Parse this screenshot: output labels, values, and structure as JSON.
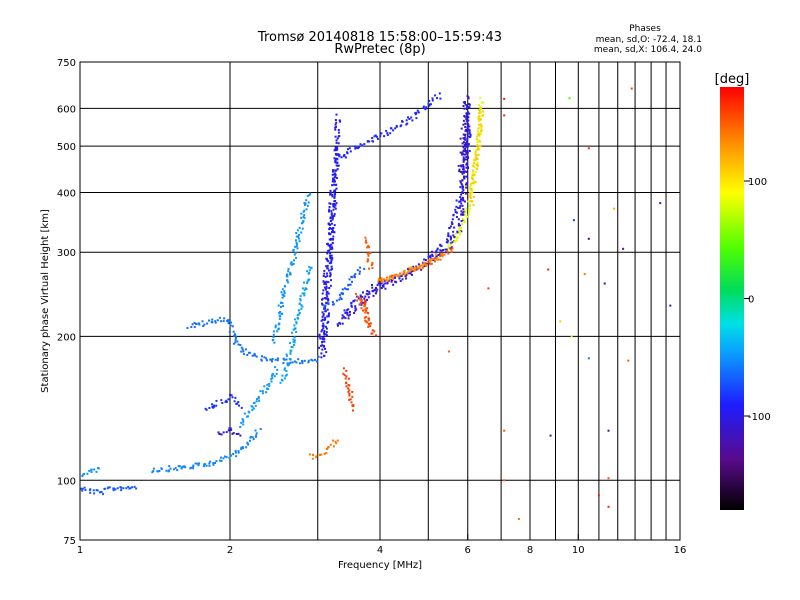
{
  "chart_data": {
    "type": "scatter",
    "title": "Tromsø 20140818 15:58:00–15:59:43",
    "subtitle": "RwPretec (8p)",
    "xlabel": "Frequency [MHz]",
    "ylabel": "Stationary phase Virtual Height [km]",
    "x_scale": "log",
    "y_scale": "log",
    "xlim": [
      1,
      16
    ],
    "ylim": [
      75,
      750
    ],
    "x_ticks": [
      1,
      2,
      4,
      6,
      8,
      10,
      16
    ],
    "x_tick_labels": [
      "1",
      "2",
      "4",
      "6",
      "8",
      "10",
      "16"
    ],
    "y_ticks": [
      75,
      100,
      200,
      300,
      400,
      500,
      600,
      750
    ],
    "y_tick_labels": [
      "75",
      "100",
      "200",
      "300",
      "400",
      "500",
      "600",
      "750"
    ],
    "grid": true,
    "phase_box": {
      "heading": "Phases",
      "line_o": "mean, sd,O: -72.4, 18.1",
      "line_x": "mean, sd,X: 106.4, 24.0"
    },
    "colorbar": {
      "label": "[deg]",
      "range": [
        -180,
        180
      ],
      "ticks": [
        100,
        0,
        -100
      ],
      "tick_labels": [
        "100",
        "0",
        "-100"
      ]
    },
    "traces": [
      {
        "pts": [
          [
            1.0,
            103
          ],
          [
            1.03,
            104
          ],
          [
            1.07,
            105
          ],
          [
            1.1,
            106
          ]
        ],
        "phase": -50
      },
      {
        "pts": [
          [
            1.0,
            96
          ],
          [
            1.05,
            95
          ],
          [
            1.1,
            94
          ],
          [
            1.15,
            96
          ],
          [
            1.3,
            97
          ]
        ],
        "phase": -70
      },
      {
        "pts": [
          [
            1.4,
            105
          ],
          [
            1.55,
            106
          ],
          [
            1.7,
            107
          ],
          [
            1.8,
            108
          ],
          [
            1.9,
            110
          ],
          [
            2.0,
            112
          ],
          [
            2.1,
            116
          ],
          [
            2.2,
            122
          ],
          [
            2.3,
            128
          ]
        ],
        "phase": -55
      },
      {
        "pts": [
          [
            1.65,
            210
          ],
          [
            1.75,
            212
          ],
          [
            1.85,
            215
          ],
          [
            1.95,
            218
          ],
          [
            2.0,
            215
          ],
          [
            2.02,
            205
          ],
          [
            2.05,
            195
          ],
          [
            2.1,
            188
          ],
          [
            2.2,
            183
          ],
          [
            2.3,
            180
          ],
          [
            2.5,
            178
          ],
          [
            2.7,
            177
          ],
          [
            2.9,
            178
          ],
          [
            3.0,
            180
          ]
        ],
        "phase": -62
      },
      {
        "pts": [
          [
            2.45,
            195
          ],
          [
            2.5,
            215
          ],
          [
            2.55,
            240
          ],
          [
            2.6,
            262
          ],
          [
            2.65,
            280
          ],
          [
            2.7,
            300
          ],
          [
            2.75,
            330
          ],
          [
            2.8,
            360
          ],
          [
            2.85,
            385
          ],
          [
            2.9,
            400
          ]
        ],
        "phase": -50
      },
      {
        "pts": [
          [
            2.55,
            160
          ],
          [
            2.6,
            175
          ],
          [
            2.65,
            190
          ],
          [
            2.7,
            205
          ],
          [
            2.75,
            222
          ],
          [
            2.8,
            240
          ],
          [
            2.85,
            260
          ],
          [
            2.9,
            275
          ],
          [
            2.95,
            280
          ]
        ],
        "phase": -45
      },
      {
        "pts": [
          [
            2.1,
            130
          ],
          [
            2.2,
            140
          ],
          [
            2.3,
            150
          ],
          [
            2.4,
            160
          ],
          [
            2.5,
            172
          ]
        ],
        "phase": -48
      },
      {
        "pts": [
          [
            1.8,
            140
          ],
          [
            1.9,
            145
          ],
          [
            2.0,
            150
          ],
          [
            2.1,
            142
          ]
        ],
        "phase": -85
      },
      {
        "pts": [
          [
            1.9,
            125
          ],
          [
            2.0,
            128
          ],
          [
            2.1,
            124
          ]
        ],
        "phase": -105
      },
      {
        "pts": [
          [
            3.05,
            190
          ],
          [
            3.1,
            250
          ],
          [
            3.15,
            300
          ],
          [
            3.2,
            380
          ],
          [
            3.25,
            450
          ],
          [
            3.28,
            520
          ],
          [
            3.3,
            580
          ]
        ],
        "phase": -98
      },
      {
        "pts": [
          [
            3.08,
            180
          ],
          [
            3.13,
            230
          ],
          [
            3.18,
            290
          ],
          [
            3.22,
            360
          ],
          [
            3.26,
            430
          ],
          [
            3.29,
            500
          ]
        ],
        "phase": -92
      },
      {
        "pts": [
          [
            3.3,
            470
          ],
          [
            3.5,
            490
          ],
          [
            3.8,
            510
          ],
          [
            4.2,
            540
          ],
          [
            4.6,
            570
          ],
          [
            5.0,
            610
          ],
          [
            5.3,
            640
          ]
        ],
        "phase": -88
      },
      {
        "pts": [
          [
            3.1,
            230
          ],
          [
            3.2,
            235
          ],
          [
            3.3,
            240
          ],
          [
            3.4,
            250
          ],
          [
            3.5,
            262
          ],
          [
            3.6,
            272
          ],
          [
            3.7,
            278
          ]
        ],
        "phase": -70
      },
      {
        "pts": [
          [
            3.3,
            210
          ],
          [
            3.4,
            222
          ],
          [
            3.5,
            232
          ],
          [
            3.7,
            245
          ],
          [
            4.0,
            258
          ],
          [
            4.5,
            272
          ],
          [
            5.0,
            290
          ],
          [
            5.5,
            320
          ],
          [
            5.8,
            390
          ],
          [
            6.0,
            500
          ],
          [
            6.05,
            620
          ]
        ],
        "phase": -92
      },
      {
        "pts": [
          [
            3.4,
            218
          ],
          [
            3.7,
            238
          ],
          [
            4.0,
            252
          ],
          [
            4.5,
            268
          ],
          [
            5.0,
            285
          ],
          [
            5.5,
            305
          ],
          [
            5.8,
            340
          ],
          [
            5.95,
            450
          ],
          [
            6.0,
            560
          ]
        ],
        "phase": -110
      },
      {
        "pts": [
          [
            5.8,
            440
          ],
          [
            5.85,
            500
          ],
          [
            5.9,
            560
          ],
          [
            5.95,
            620
          ],
          [
            6.0,
            640
          ]
        ],
        "phase": -112
      },
      {
        "pts": [
          [
            3.7,
            240
          ],
          [
            3.75,
            225
          ],
          [
            3.8,
            215
          ],
          [
            3.85,
            205
          ],
          [
            3.9,
            200
          ]
        ],
        "phase": 160
      },
      {
        "pts": [
          [
            3.6,
            245
          ],
          [
            3.7,
            232
          ],
          [
            3.75,
            220
          ],
          [
            3.8,
            210
          ]
        ],
        "phase": 150
      },
      {
        "pts": [
          [
            3.75,
            320
          ],
          [
            3.8,
            295
          ],
          [
            3.85,
            275
          ]
        ],
        "phase": 150
      },
      {
        "pts": [
          [
            3.95,
            260
          ],
          [
            4.2,
            265
          ],
          [
            4.5,
            272
          ],
          [
            4.8,
            280
          ],
          [
            5.1,
            288
          ],
          [
            5.4,
            298
          ],
          [
            5.6,
            305
          ]
        ],
        "phase": 148
      },
      {
        "pts": [
          [
            4.0,
            262
          ],
          [
            4.3,
            268
          ],
          [
            4.7,
            278
          ],
          [
            5.0,
            286
          ],
          [
            5.3,
            296
          ]
        ],
        "phase": 130
      },
      {
        "pts": [
          [
            5.5,
            305
          ],
          [
            5.7,
            320
          ],
          [
            5.9,
            345
          ],
          [
            6.0,
            365
          ],
          [
            6.1,
            400
          ],
          [
            6.2,
            450
          ],
          [
            6.3,
            520
          ],
          [
            6.35,
            580
          ],
          [
            6.4,
            630
          ]
        ],
        "phase": 80
      },
      {
        "pts": [
          [
            6.1,
            380
          ],
          [
            6.2,
            440
          ],
          [
            6.3,
            500
          ],
          [
            6.35,
            560
          ],
          [
            6.4,
            610
          ]
        ],
        "phase": 110
      },
      {
        "pts": [
          [
            3.4,
            170
          ],
          [
            3.45,
            160
          ],
          [
            3.5,
            150
          ],
          [
            3.55,
            140
          ]
        ],
        "phase": 160
      },
      {
        "pts": [
          [
            2.9,
            112
          ],
          [
            3.0,
            113
          ],
          [
            3.1,
            115
          ],
          [
            3.2,
            118
          ],
          [
            3.3,
            122
          ]
        ],
        "phase": 140
      }
    ],
    "scattered_points": [
      {
        "x": 7.1,
        "y": 628,
        "phase": 170
      },
      {
        "x": 7.1,
        "y": 580,
        "phase": 170
      },
      {
        "x": 9.6,
        "y": 630,
        "phase": 40
      },
      {
        "x": 12.8,
        "y": 660,
        "phase": 160
      },
      {
        "x": 10.5,
        "y": 495,
        "phase": 165
      },
      {
        "x": 11.8,
        "y": 370,
        "phase": 120
      },
      {
        "x": 9.8,
        "y": 350,
        "phase": -80
      },
      {
        "x": 10.5,
        "y": 320,
        "phase": -140
      },
      {
        "x": 12.3,
        "y": 305,
        "phase": -135
      },
      {
        "x": 8.7,
        "y": 276,
        "phase": 170
      },
      {
        "x": 10.3,
        "y": 270,
        "phase": 140
      },
      {
        "x": 11.3,
        "y": 258,
        "phase": -120
      },
      {
        "x": 14.6,
        "y": 380,
        "phase": -130
      },
      {
        "x": 15.3,
        "y": 232,
        "phase": -120
      },
      {
        "x": 9.2,
        "y": 215,
        "phase": 110
      },
      {
        "x": 9.7,
        "y": 200,
        "phase": 70
      },
      {
        "x": 10.5,
        "y": 180,
        "phase": -60
      },
      {
        "x": 12.6,
        "y": 178,
        "phase": 150
      },
      {
        "x": 5.5,
        "y": 186,
        "phase": 150
      },
      {
        "x": 6.6,
        "y": 252,
        "phase": 160
      },
      {
        "x": 7.1,
        "y": 127,
        "phase": 150
      },
      {
        "x": 8.8,
        "y": 124,
        "phase": -130
      },
      {
        "x": 11.5,
        "y": 127,
        "phase": -140
      },
      {
        "x": 7.1,
        "y": 100,
        "phase": 150
      },
      {
        "x": 11.5,
        "y": 101,
        "phase": 150
      },
      {
        "x": 11.0,
        "y": 93,
        "phase": 170
      },
      {
        "x": 11.5,
        "y": 88,
        "phase": 170
      },
      {
        "x": 7.6,
        "y": 83,
        "phase": 140
      }
    ]
  }
}
